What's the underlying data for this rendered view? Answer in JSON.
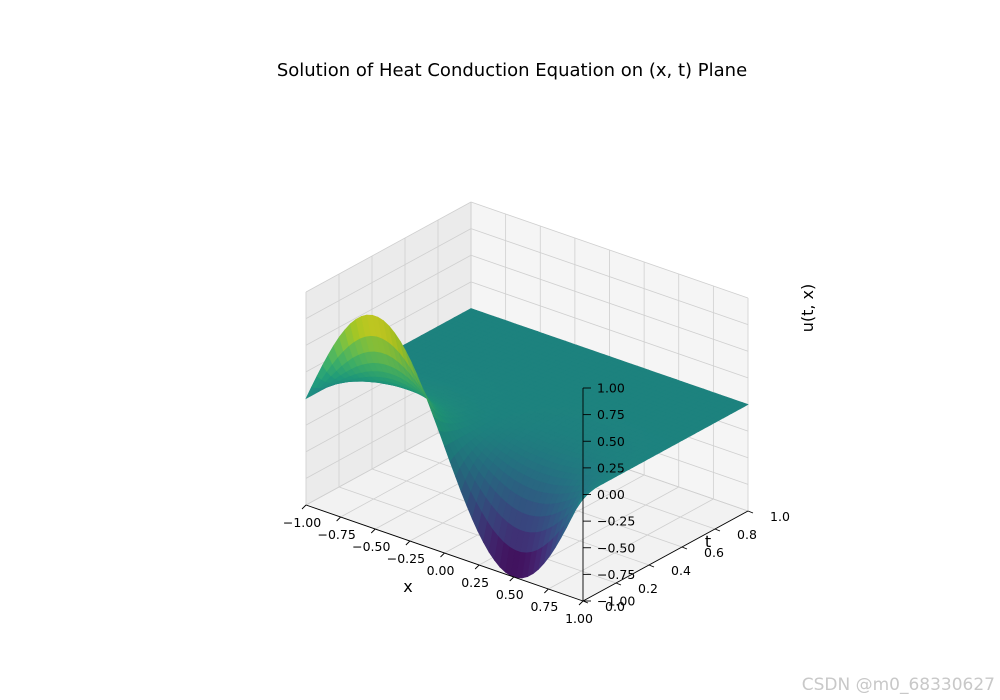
{
  "chart_data": {
    "type": "surface",
    "title": "Solution of Heat Conduction Equation on (x, t) Plane",
    "xlabel": "x",
    "ylabel": "t",
    "zlabel": "u(t, x)",
    "x_range": [
      -1,
      1
    ],
    "t_range": [
      0,
      1
    ],
    "z_range": [
      -1,
      1
    ],
    "x_ticks": [
      "−1.00",
      "−0.75",
      "−0.50",
      "−0.25",
      "0.00",
      "0.25",
      "0.50",
      "0.75",
      "1.00"
    ],
    "t_ticks": [
      "0.0",
      "0.2",
      "0.4",
      "0.6",
      "0.8",
      "1.0"
    ],
    "z_ticks": [
      "−1.00",
      "−0.75",
      "−0.50",
      "−0.25",
      "0.00",
      "0.25",
      "0.50",
      "0.75",
      "1.00"
    ],
    "surface": {
      "function": "u(t, x) = -sin(pi*x) * exp(-(pi^2)*t)",
      "initial_condition": "u(0, x) = -sin(pi*x)",
      "boundary": "u(t, -1) = u(t, 1) = 0",
      "colormap": "viridis",
      "samples": {
        "x": [
          -1.0,
          -0.5,
          0.0,
          0.5,
          1.0
        ],
        "u_at_t0": [
          0.0,
          1.0,
          0.0,
          -1.0,
          0.0
        ]
      }
    },
    "grid": true
  },
  "watermark": "CSDN @m0_68330627"
}
